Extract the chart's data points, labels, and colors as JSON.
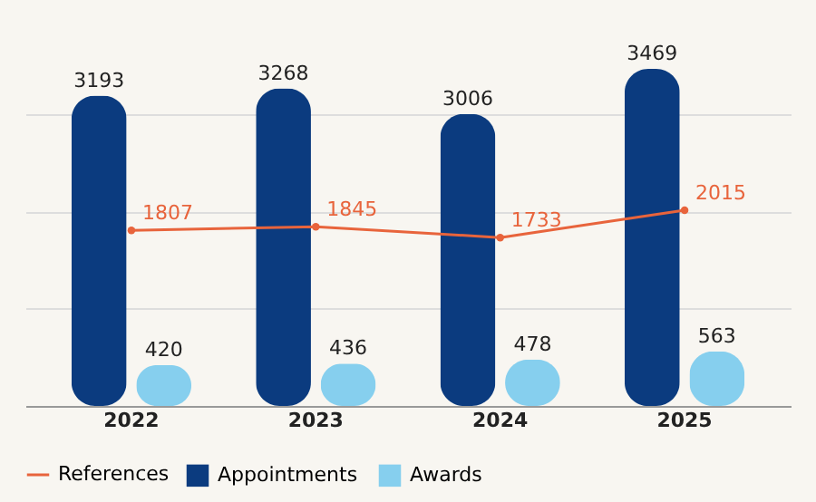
{
  "chart_data": {
    "type": "bar",
    "categories": [
      "2022",
      "2023",
      "2024",
      "2025"
    ],
    "series": [
      {
        "name": "Appointments",
        "color": "#0b3b7f",
        "values": [
          3193,
          3268,
          3006,
          3469
        ]
      },
      {
        "name": "Awards",
        "color": "#86cfee",
        "values": [
          420,
          436,
          478,
          563
        ]
      },
      {
        "name": "References",
        "color": "#e8643c",
        "type": "line",
        "values": [
          1807,
          1845,
          1733,
          2015
        ]
      }
    ],
    "grid": "y",
    "tick_labels": "x",
    "data_labels": true,
    "legend": "bottom",
    "marker": "circle"
  }
}
